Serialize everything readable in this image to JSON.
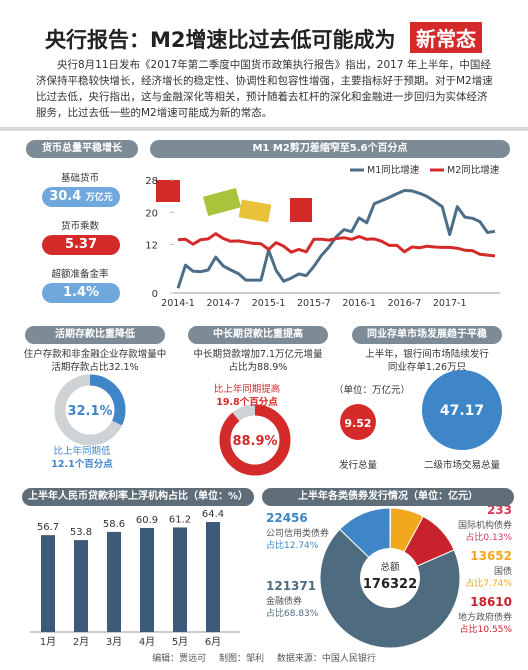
{
  "header": {
    "title": "央行报告：M2增速比过去低可能成为",
    "badge": "新常态",
    "intro": "央行8月11日发布《2017年第二季度中国货币政策执行报告》指出，2017 年上半年，中国经济保持平稳较快增长，经济增长的稳定性、协调性和包容性增强，主要指标好于预期。对于M2增速比过去低，央行指出，这与金融深化等相关，预计随着去杠杆的深化和金融进一步回归为实体经济服务，比过去低一些的M2增速可能成为新的常态。"
  },
  "money": {
    "title": "货币总量平稳增长",
    "items": [
      {
        "label": "基础货币",
        "value": "30.4",
        "unit": "万亿元"
      },
      {
        "label": "货币乘数",
        "value": "5.37"
      },
      {
        "label": "超额准备金率",
        "value": "1.4%"
      }
    ]
  },
  "chart_data": [
    {
      "type": "line",
      "title": "M1 M2剪刀差缩窄至5.6个百分点",
      "categories": [
        "2014-1",
        null,
        null,
        null,
        null,
        null,
        "2014-7",
        null,
        null,
        null,
        null,
        null,
        "2015-1",
        null,
        null,
        null,
        null,
        null,
        "2015-7",
        null,
        null,
        null,
        null,
        null,
        "2016-1",
        null,
        null,
        null,
        null,
        null,
        "2016-7",
        null,
        null,
        null,
        null,
        null,
        "2017-1",
        null,
        null,
        null,
        null,
        null,
        null
      ],
      "series": [
        {
          "name": "M1同比增速",
          "color": "#4d6e87",
          "values": [
            1.2,
            6.9,
            5.4,
            5.3,
            5.7,
            8.9,
            6.7,
            5.7,
            4.8,
            3.2,
            3.2,
            3.2,
            10.6,
            5.6,
            2.9,
            3.7,
            4.7,
            4.3,
            6.6,
            9.3,
            11.4,
            14.0,
            15.7,
            15.2,
            18.6,
            17.4,
            22.1,
            22.9,
            23.7,
            24.6,
            25.4,
            25.3,
            24.7,
            23.9,
            22.7,
            21.4,
            14.5,
            21.4,
            18.8,
            18.5,
            17.7,
            15.0,
            15.3
          ]
        },
        {
          "name": "M2同比增速",
          "color": "#d42a2a",
          "values": [
            13.2,
            13.3,
            12.1,
            13.2,
            13.4,
            14.7,
            13.5,
            12.8,
            12.9,
            12.6,
            12.3,
            12.2,
            10.8,
            12.5,
            11.6,
            10.1,
            10.8,
            10.2,
            13.3,
            13.3,
            13.1,
            13.5,
            13.7,
            13.3,
            14.0,
            13.3,
            13.4,
            12.8,
            11.8,
            11.8,
            10.2,
            11.4,
            11.2,
            11.6,
            11.4,
            11.3,
            11.3,
            11.1,
            10.6,
            10.5,
            9.6,
            9.4,
            9.2
          ]
        }
      ],
      "ylim": [
        0,
        28
      ],
      "yticks": [
        0,
        12,
        20,
        28
      ],
      "grid": false
    },
    {
      "type": "donut",
      "title": "活期存款比重降低",
      "text": "住户存款和非金融企业存款增量中活期存款占比32.1%",
      "values": [
        32.1
      ],
      "value_labels": [
        "32.1%"
      ],
      "note": [
        "比上年同期低",
        "12.1个百分点"
      ],
      "color": "#3f86c8"
    },
    {
      "type": "donut",
      "title": "中长期贷款比重提高",
      "text": "中长期贷款增加7.1万亿元增量占比为88.9%",
      "values": [
        88.9
      ],
      "value_labels": [
        "88.9%"
      ],
      "note": [
        "比上年同期提高",
        "19.8个百分点"
      ],
      "color": "#d42a2a"
    },
    {
      "type": "bubble",
      "title": "同业存单市场发展趋于平稳",
      "text": "上半年，银行间市场陆续发行同业存单1.26万只",
      "unit": "（单位：万亿元）",
      "categories": [
        "发行总量",
        "二级市场交易总量"
      ],
      "values": [
        9.52,
        47.17
      ],
      "colors": [
        "#d42a2a",
        "#3f86c8"
      ]
    },
    {
      "type": "bar",
      "title": "上半年人民币贷款利率上浮机构占比（单位：%）",
      "categories": [
        "1月",
        "2月",
        "3月",
        "4月",
        "5月",
        "6月"
      ],
      "values": [
        56.7,
        53.8,
        58.6,
        60.9,
        61.2,
        64.4
      ],
      "color": "#3d5a7a"
    },
    {
      "type": "pie",
      "title": "上半年各类债券发行情况（单位：亿元）",
      "total_label": "总额",
      "total": 176322,
      "categories": [
        "国际机构债券",
        "国债",
        "地方政府债券",
        "金融债券",
        "公司信用类债券"
      ],
      "values": [
        233,
        13652,
        18610,
        121371,
        22456
      ],
      "share_labels": [
        "占比0.13%",
        "占比7.74%",
        "占比10.55%",
        "占比68.83%",
        "占比12.74%"
      ],
      "colors": [
        "#d23a5a",
        "#f2a81d",
        "#c8232c",
        "#4f6b80",
        "#3f86c8"
      ]
    }
  ],
  "footer": {
    "editor": "编辑：贾远可",
    "designer": "制图：邹利",
    "source": "数据来源：中国人民银行"
  }
}
